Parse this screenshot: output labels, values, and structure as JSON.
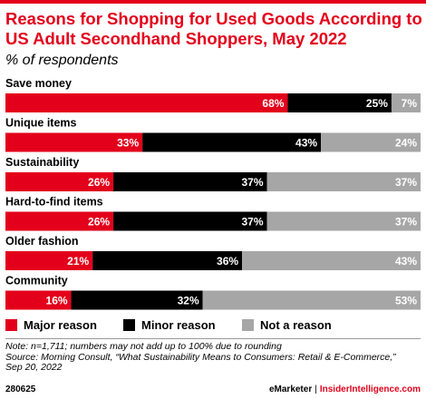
{
  "header": {
    "title": "Reasons for Shopping for Used Goods According to US Adult Secondhand Shoppers, May 2022",
    "subtitle": "% of respondents"
  },
  "colors": {
    "accent": "#e3001b",
    "major": "#e3001b",
    "minor": "#000000",
    "not": "#a6a6a6"
  },
  "chart_data": {
    "type": "bar",
    "stacked": true,
    "orientation": "horizontal",
    "categories": [
      "Save money",
      "Unique items",
      "Sustainability",
      "Hard-to-find items",
      "Older fashion",
      "Community"
    ],
    "series": [
      {
        "name": "Major reason",
        "values": [
          68,
          33,
          26,
          26,
          21,
          16
        ]
      },
      {
        "name": "Minor reason",
        "values": [
          25,
          43,
          37,
          37,
          36,
          32
        ]
      },
      {
        "name": "Not a reason",
        "values": [
          7,
          24,
          37,
          37,
          43,
          53
        ]
      }
    ],
    "unit": "%",
    "data_labels": true,
    "legend_position": "bottom-left",
    "grid": false
  },
  "legend": {
    "major": "Major reason",
    "minor": "Minor reason",
    "not": "Not a reason"
  },
  "notes": {
    "line1": "Note: n=1,711; numbers may not add up to 100% due to rounding",
    "line2": "Source: Morning Consult, “What Sustainability Means to Consumers: Retail & E-Commerce,”",
    "line3": "Sep 20, 2022"
  },
  "footer": {
    "chart_id": "280625",
    "brand": "eMarketer",
    "separator": "|",
    "site": "InsiderIntelligence.com"
  }
}
